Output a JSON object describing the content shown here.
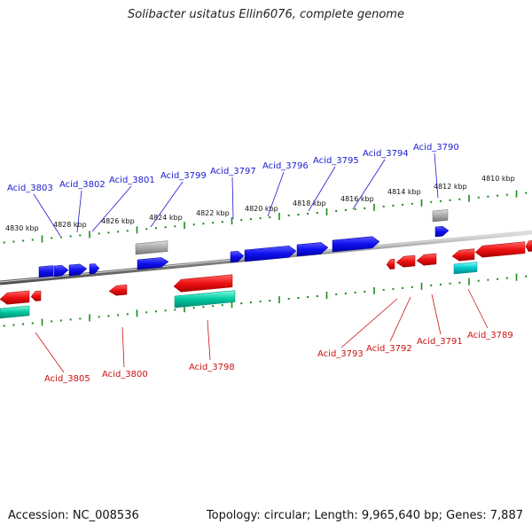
{
  "title": "Solibacter usitatus Ellin6076, complete genome",
  "footer": {
    "accession": "Accession: NC_008536",
    "summary": "Topology: circular; Length: 9,965,640 bp; Genes: 7,887"
  },
  "colors": {
    "forward_gene": "#1010ee",
    "reverse_gene": "#ee1111",
    "rna_gene": "#999999",
    "cds_feature": "#00c8a0",
    "tick": "#1a8a1a",
    "top_label": "#1a1ad0",
    "bottom_label": "#cc1111"
  },
  "scale_labels": [
    "4830 kbp",
    "4828 kbp",
    "4826 kbp",
    "4824 kbp",
    "4822 kbp",
    "4820 kbp",
    "4818 kbp",
    "4816 kbp",
    "4814 kbp",
    "4812 kbp",
    "4810 kbp"
  ],
  "top_gene_labels": [
    "Acid_3803",
    "Acid_3802",
    "Acid_3801",
    "Acid_3799",
    "Acid_3797",
    "Acid_3796",
    "Acid_3795",
    "Acid_3794",
    "Acid_3790"
  ],
  "bottom_gene_labels": [
    "Acid_3805",
    "Acid_3800",
    "Acid_3798",
    "Acid_3793",
    "Acid_3792",
    "Acid_3791",
    "Acid_3789"
  ]
}
